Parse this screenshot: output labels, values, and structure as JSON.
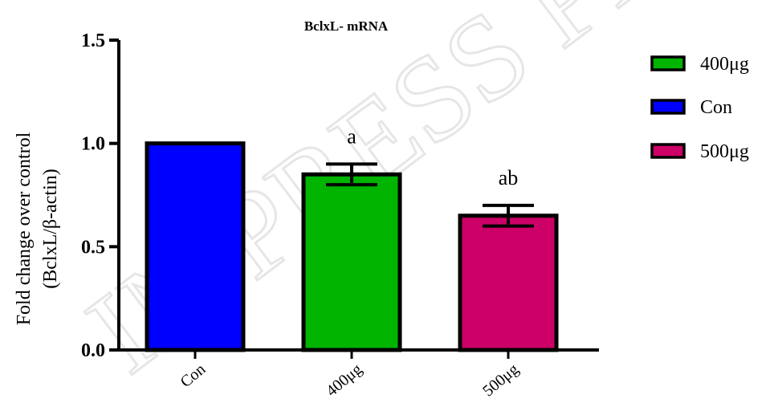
{
  "chart_data": {
    "type": "bar",
    "title": "BclxL- mRNA",
    "ylabel_line1": "Fold change over control",
    "ylabel_line2": "(BclxL/β-actin)",
    "categories": [
      "Con",
      "400μg",
      "500μg"
    ],
    "values": [
      1.0,
      0.85,
      0.65
    ],
    "errors": [
      0.0,
      0.05,
      0.05
    ],
    "annotations": [
      "",
      "a",
      "ab"
    ],
    "colors": [
      "#0000ff",
      "#00b400",
      "#cc0066"
    ],
    "ylim": [
      0,
      1.5
    ],
    "yticks": [
      0.0,
      0.5,
      1.0,
      1.5
    ],
    "ytick_labels": [
      "0.0",
      "0.5",
      "1.0",
      "1.5"
    ],
    "legend": {
      "position": "right",
      "entries": [
        {
          "label": "400μg",
          "color": "#00b400"
        },
        {
          "label": "Con",
          "color": "#0000ff"
        },
        {
          "label": "500μg",
          "color": "#cc0066"
        }
      ]
    }
  },
  "watermark": "IN PRESS PREVIEW"
}
